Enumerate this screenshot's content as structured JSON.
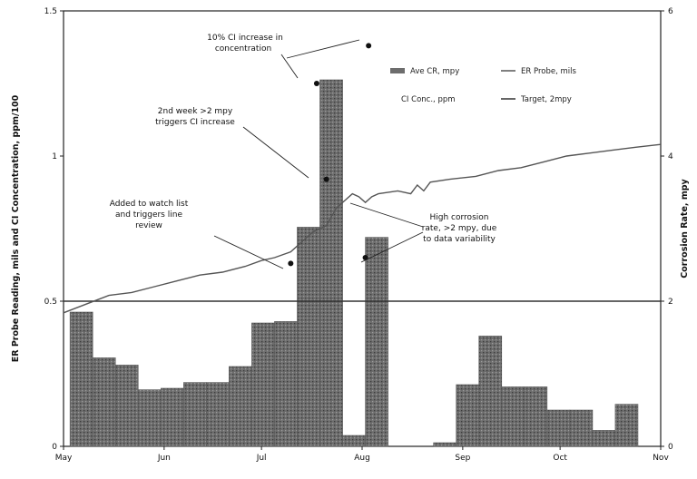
{
  "chart_data": {
    "type": "bar",
    "x_ticks": [
      "May",
      "Jun",
      "Jul",
      "Aug",
      "Sep",
      "Oct",
      "Nov"
    ],
    "y_left": {
      "label": "ER Probe Reading, mils and CI Concentration, ppm/100",
      "ylim": [
        0,
        1.5
      ],
      "ticks": [
        "0",
        "0.5",
        "1",
        "1.5"
      ]
    },
    "y_right": {
      "label": "Corrosion Rate, mpy",
      "ylim": [
        0,
        6
      ],
      "ticks": [
        "0",
        "2",
        "4",
        "6"
      ]
    },
    "series": [
      {
        "name": "Ave CR, mpy",
        "type": "bar",
        "axis": "right",
        "color": "#6d6d6d",
        "bars": [
          {
            "start": "2009-05-03",
            "end": "2009-05-10",
            "value": 1.85
          },
          {
            "start": "2009-05-10",
            "end": "2009-05-17",
            "value": 1.22
          },
          {
            "start": "2009-05-17",
            "end": "2009-05-24",
            "value": 1.12
          },
          {
            "start": "2009-05-24",
            "end": "2009-05-31",
            "value": 0.78
          },
          {
            "start": "2009-05-31",
            "end": "2009-06-07",
            "value": 0.8
          },
          {
            "start": "2009-06-07",
            "end": "2009-06-14",
            "value": 0.88
          },
          {
            "start": "2009-06-14",
            "end": "2009-06-21",
            "value": 0.88
          },
          {
            "start": "2009-06-21",
            "end": "2009-06-28",
            "value": 1.1
          },
          {
            "start": "2009-06-28",
            "end": "2009-07-05",
            "value": 1.7
          },
          {
            "start": "2009-07-05",
            "end": "2009-07-12",
            "value": 1.72
          },
          {
            "start": "2009-07-12",
            "end": "2009-07-19",
            "value": 3.02
          },
          {
            "start": "2009-07-19",
            "end": "2009-07-26",
            "value": 5.05
          },
          {
            "start": "2009-07-26",
            "end": "2009-08-02",
            "value": 0.15
          },
          {
            "start": "2009-08-02",
            "end": "2009-08-09",
            "value": 2.88
          },
          {
            "start": "2009-08-23",
            "end": "2009-08-30",
            "value": 0.05
          },
          {
            "start": "2009-08-30",
            "end": "2009-09-06",
            "value": 0.85
          },
          {
            "start": "2009-09-06",
            "end": "2009-09-13",
            "value": 1.52
          },
          {
            "start": "2009-09-13",
            "end": "2009-09-20",
            "value": 0.82
          },
          {
            "start": "2009-09-20",
            "end": "2009-09-27",
            "value": 0.82
          },
          {
            "start": "2009-09-27",
            "end": "2009-10-04",
            "value": 0.5
          },
          {
            "start": "2009-10-04",
            "end": "2009-10-11",
            "value": 0.5
          },
          {
            "start": "2009-10-11",
            "end": "2009-10-18",
            "value": 0.22
          },
          {
            "start": "2009-10-18",
            "end": "2009-10-25",
            "value": 0.58
          }
        ]
      },
      {
        "name": "ER Probe, mils",
        "type": "line",
        "axis": "left",
        "color": "#555555",
        "points": [
          [
            "2009-05-01",
            0.46
          ],
          [
            "2009-05-08",
            0.49
          ],
          [
            "2009-05-15",
            0.52
          ],
          [
            "2009-05-22",
            0.53
          ],
          [
            "2009-05-29",
            0.55
          ],
          [
            "2009-06-05",
            0.57
          ],
          [
            "2009-06-12",
            0.59
          ],
          [
            "2009-06-19",
            0.6
          ],
          [
            "2009-06-26",
            0.62
          ],
          [
            "2009-07-01",
            0.64
          ],
          [
            "2009-07-05",
            0.65
          ],
          [
            "2009-07-10",
            0.67
          ],
          [
            "2009-07-14",
            0.71
          ],
          [
            "2009-07-17",
            0.74
          ],
          [
            "2009-07-21",
            0.76
          ],
          [
            "2009-07-24",
            0.82
          ],
          [
            "2009-07-27",
            0.85
          ],
          [
            "2009-07-29",
            0.87
          ],
          [
            "2009-07-31",
            0.86
          ],
          [
            "2009-08-02",
            0.84
          ],
          [
            "2009-08-04",
            0.86
          ],
          [
            "2009-08-06",
            0.87
          ],
          [
            "2009-08-12",
            0.88
          ],
          [
            "2009-08-16",
            0.87
          ],
          [
            "2009-08-18",
            0.9
          ],
          [
            "2009-08-20",
            0.88
          ],
          [
            "2009-08-22",
            0.91
          ],
          [
            "2009-08-28",
            0.92
          ],
          [
            "2009-09-05",
            0.93
          ],
          [
            "2009-09-12",
            0.95
          ],
          [
            "2009-09-19",
            0.96
          ],
          [
            "2009-09-26",
            0.98
          ],
          [
            "2009-10-03",
            1.0
          ],
          [
            "2009-10-10",
            1.01
          ],
          [
            "2009-10-17",
            1.02
          ],
          [
            "2009-10-24",
            1.03
          ],
          [
            "2009-11-01",
            1.04
          ]
        ]
      },
      {
        "name": "CI Conc., ppm",
        "type": "scatter",
        "axis": "left",
        "color": "#111111",
        "points": [
          [
            "2009-07-10",
            0.63
          ],
          [
            "2009-07-21",
            0.92
          ],
          [
            "2009-07-18",
            1.25
          ],
          [
            "2009-08-02",
            0.65
          ],
          [
            "2009-08-03",
            1.38
          ]
        ]
      },
      {
        "name": "Target, 2mpy",
        "type": "hline",
        "axis": "right",
        "color": "#333333",
        "value": 2
      }
    ],
    "annotations": [
      {
        "text": "10% CI increase in concentration"
      },
      {
        "text": "2nd week >2 mpy triggers CI increase"
      },
      {
        "text": "Added to watch list and triggers line review"
      },
      {
        "text": "High corrosion rate, >2 mpy, due to data variability"
      }
    ],
    "legend_position": "top-right",
    "grid": false
  }
}
